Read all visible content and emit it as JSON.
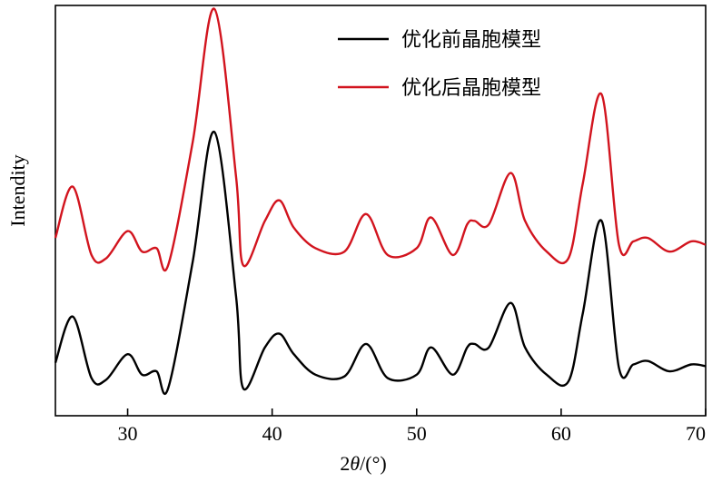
{
  "chart_data": {
    "type": "line",
    "title": "",
    "xlabel": "2θ/(°)",
    "ylabel": "Intendity",
    "xlim": [
      25,
      70
    ],
    "ylim": [
      0,
      1.2
    ],
    "x_ticks": [
      30,
      40,
      50,
      60,
      70
    ],
    "x_tick_labels": [
      "30",
      "40",
      "50",
      "60",
      "70"
    ],
    "y_ticks_shown": false,
    "grid": false,
    "legend_position": "top-right",
    "series": [
      {
        "name": "优化前晶胞模型",
        "color": "#000000",
        "x": [
          25.0,
          26.2,
          27.5,
          28.5,
          30.0,
          31.0,
          32.0,
          32.8,
          34.5,
          36.0,
          37.5,
          38.0,
          39.5,
          40.5,
          41.5,
          43.0,
          45.0,
          46.5,
          48.0,
          50.0,
          51.0,
          52.5,
          53.5,
          54.0,
          55.0,
          56.5,
          57.5,
          59.0,
          60.5,
          61.5,
          62.8,
          64.0,
          65.0,
          66.0,
          67.5,
          69.0,
          70.0
        ],
        "values": [
          0.155,
          0.29,
          0.11,
          0.105,
          0.18,
          0.12,
          0.13,
          0.08,
          0.45,
          0.83,
          0.35,
          0.08,
          0.2,
          0.24,
          0.18,
          0.12,
          0.115,
          0.21,
          0.11,
          0.12,
          0.2,
          0.12,
          0.2,
          0.21,
          0.2,
          0.33,
          0.2,
          0.12,
          0.1,
          0.3,
          0.57,
          0.14,
          0.15,
          0.16,
          0.13,
          0.15,
          0.145
        ]
      },
      {
        "name": "优化后晶胞模型",
        "color": "#d2141e",
        "x": [
          25.0,
          26.2,
          27.5,
          28.5,
          30.0,
          31.0,
          32.0,
          32.8,
          34.5,
          36.0,
          37.5,
          38.0,
          39.5,
          40.5,
          41.5,
          43.0,
          45.0,
          46.5,
          48.0,
          50.0,
          51.0,
          52.5,
          53.5,
          54.0,
          55.0,
          56.5,
          57.5,
          59.0,
          60.5,
          61.5,
          62.8,
          64.0,
          65.0,
          66.0,
          67.5,
          69.0,
          70.0
        ],
        "values": [
          0.52,
          0.67,
          0.47,
          0.46,
          0.54,
          0.48,
          0.49,
          0.44,
          0.8,
          1.19,
          0.7,
          0.44,
          0.57,
          0.63,
          0.55,
          0.49,
          0.48,
          0.59,
          0.47,
          0.49,
          0.58,
          0.47,
          0.56,
          0.57,
          0.56,
          0.71,
          0.57,
          0.48,
          0.46,
          0.68,
          0.94,
          0.5,
          0.51,
          0.52,
          0.48,
          0.51,
          0.5
        ]
      }
    ]
  }
}
